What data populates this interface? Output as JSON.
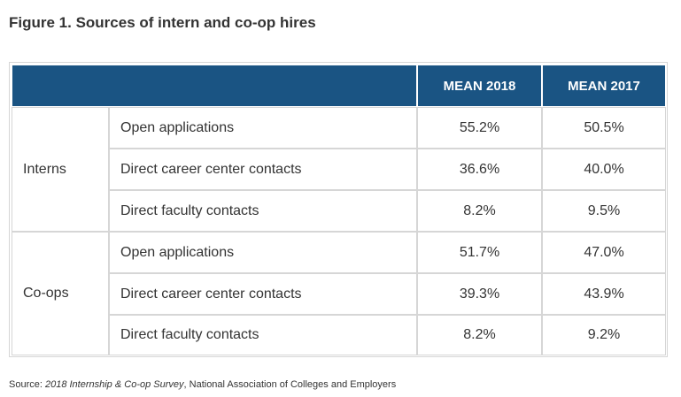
{
  "title": "Figure 1. Sources of intern and co-op hires",
  "table": {
    "headers": [
      "MEAN 2018",
      "MEAN 2017"
    ],
    "groups": [
      {
        "name": "Interns",
        "rows": [
          {
            "label": "Open applications",
            "mean_2018": "55.2%",
            "mean_2017": "50.5%"
          },
          {
            "label": "Direct career center contacts",
            "mean_2018": "36.6%",
            "mean_2017": "40.0%"
          },
          {
            "label": "Direct faculty contacts",
            "mean_2018": "8.2%",
            "mean_2017": "9.5%"
          }
        ]
      },
      {
        "name": "Co-ops",
        "rows": [
          {
            "label": "Open applications",
            "mean_2018": "51.7%",
            "mean_2017": "47.0%"
          },
          {
            "label": "Direct career center contacts",
            "mean_2018": "39.3%",
            "mean_2017": "43.9%"
          },
          {
            "label": "Direct faculty contacts",
            "mean_2018": "8.2%",
            "mean_2017": "9.2%"
          }
        ]
      }
    ]
  },
  "source": {
    "prefix": "Source: ",
    "survey": "2018 Internship & Co-op Survey",
    "suffix": ", National Association of Colleges and Employers"
  },
  "colors": {
    "header_bg": "#1a5483",
    "header_text": "#ffffff",
    "border": "#d6d6d6",
    "text": "#333333"
  }
}
